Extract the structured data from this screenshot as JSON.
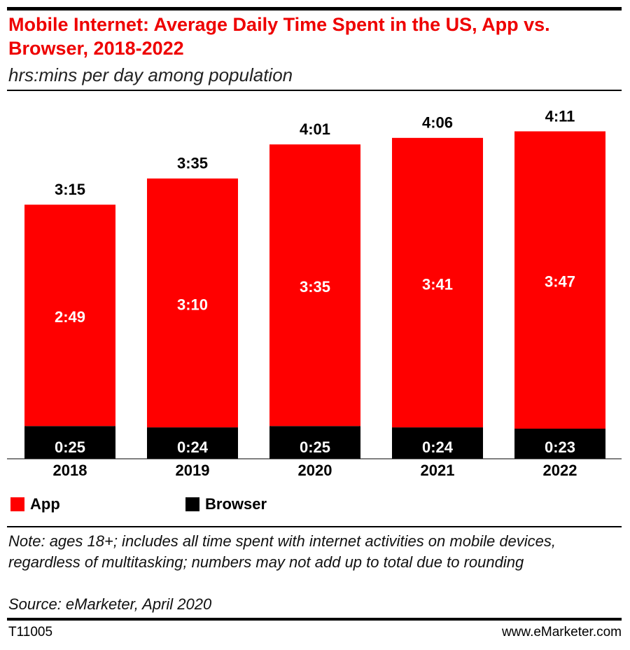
{
  "chart_data": {
    "type": "stacked_bar",
    "title": "Mobile Internet: Average Daily Time Spent in the US, App vs. Browser, 2018-2022",
    "subtitle": "hrs:mins per day among population",
    "categories": [
      "2018",
      "2019",
      "2020",
      "2021",
      "2022"
    ],
    "series": [
      {
        "name": "App",
        "color": "#ff0000",
        "values": [
          169,
          190,
          215,
          221,
          227
        ],
        "value_labels": [
          "2:49",
          "3:10",
          "3:35",
          "3:41",
          "3:47"
        ]
      },
      {
        "name": "Browser",
        "color": "#000000",
        "values": [
          25,
          24,
          25,
          24,
          23
        ],
        "value_labels": [
          "0:25",
          "0:24",
          "0:25",
          "0:24",
          "0:23"
        ]
      }
    ],
    "totals": [
      195,
      215,
      241,
      246,
      251
    ],
    "total_labels": [
      "3:15",
      "3:35",
      "4:01",
      "4:06",
      "4:11"
    ],
    "note": "Note: ages 18+; includes all time spent with internet activities on mobile devices, regardless of multitasking; numbers may not add up to total due to rounding",
    "source": "Source: eMarketer, April 2020",
    "chart_id": "T11005",
    "website": "www.eMarketer.com"
  }
}
